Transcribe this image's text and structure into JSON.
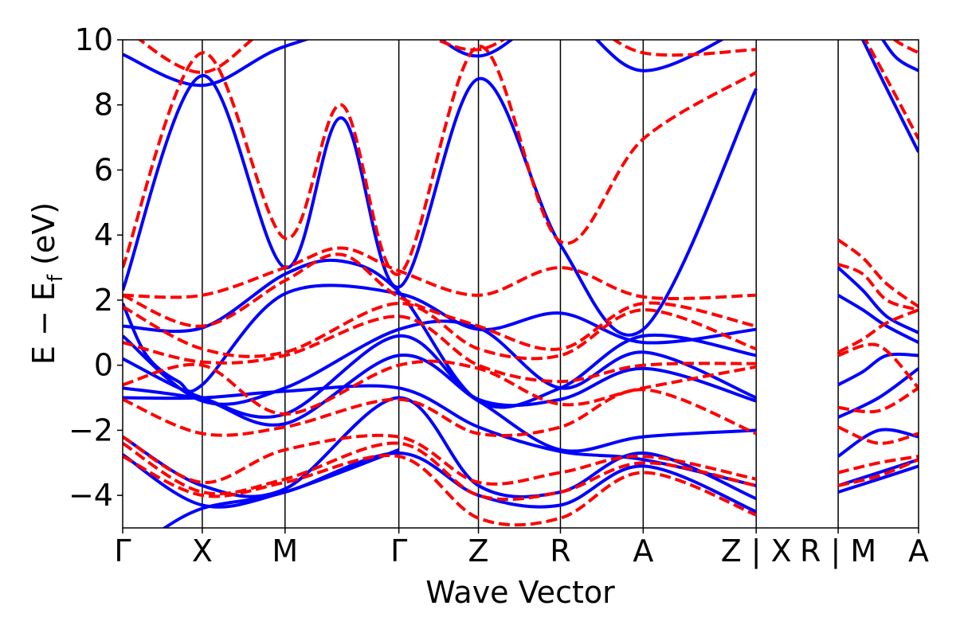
{
  "chart_data": {
    "type": "line",
    "title": "",
    "xlabel": "Wave Vector",
    "ylabel": "E − E_f (eV)",
    "ylabel_main": "E − E",
    "ylabel_sub": "f",
    "ylabel_unit": " (eV)",
    "ylim": [
      -5,
      10
    ],
    "xlim": [
      0,
      10
    ],
    "yticks": [
      -4,
      -2,
      0,
      2,
      4,
      6,
      8,
      10
    ],
    "ytick_labels": [
      "−4",
      "−2",
      "0",
      "2",
      "4",
      "6",
      "8",
      "10"
    ],
    "kpath_ticks": [
      {
        "x": 0.0,
        "label": "Γ"
      },
      {
        "x": 1.0,
        "label": "X"
      },
      {
        "x": 2.04,
        "label": "M"
      },
      {
        "x": 3.47,
        "label": "Γ"
      },
      {
        "x": 4.47,
        "label": "Z"
      },
      {
        "x": 5.5,
        "label": "R"
      },
      {
        "x": 6.54,
        "label": "A"
      },
      {
        "x": 7.96,
        "label": "Z | X"
      },
      {
        "x": 8.99,
        "label": "R | M"
      },
      {
        "x": 10.0,
        "label": "A"
      }
    ],
    "grid": false,
    "series": [
      {
        "color": "#0000ff",
        "style": "solid",
        "bands": [
          {
            "x": [
              0,
              1,
              2.04,
              3.47,
              4.47,
              5.5,
              6.54,
              7.96
            ],
            "y": [
              9.55,
              8.6,
              9.8,
              10.6,
              9.5,
              10.8,
              9.05,
              10.6
            ]
          },
          {
            "x": [
              0,
              1,
              2.04,
              2.75,
              3.47,
              4.47,
              5.5,
              6.54,
              7.96
            ],
            "y": [
              2.3,
              8.9,
              3.0,
              7.6,
              2.4,
              8.8,
              3.7,
              1.1,
              8.5
            ]
          },
          {
            "x": [
              0,
              0.3,
              0.7,
              1,
              2.04,
              3.47,
              4.47,
              5.5,
              6.54,
              7.96
            ],
            "y": [
              1.9,
              0.3,
              -0.5,
              -0.6,
              2.2,
              2.2,
              1.1,
              1.6,
              0.7,
              1.1
            ]
          },
          {
            "x": [
              0,
              1,
              2.04,
              2.75,
              3.47,
              4.47,
              5.5,
              6.54,
              7.96
            ],
            "y": [
              1.2,
              1.15,
              2.8,
              3.2,
              2.25,
              -1.1,
              -0.7,
              0.9,
              0.3
            ]
          },
          {
            "x": [
              0,
              1,
              2.04,
              3.47,
              4.47,
              5.5,
              6.54,
              7.96
            ],
            "y": [
              0.9,
              -1.1,
              -0.7,
              1.1,
              1.15,
              -0.7,
              0.4,
              -1.0
            ]
          },
          {
            "x": [
              0,
              1,
              2.04,
              3.47,
              4.47,
              5.5,
              6.54,
              7.96
            ],
            "y": [
              0.2,
              -1.0,
              -1.5,
              0.9,
              -1.05,
              -1.05,
              -0.1,
              -1.1
            ]
          },
          {
            "x": [
              0,
              1,
              2.04,
              3.47,
              4.47,
              5.5,
              6.54,
              7.96
            ],
            "y": [
              -0.7,
              -1.05,
              -1.8,
              0.3,
              -1.1,
              -2.6,
              -2.2,
              -2.0
            ]
          },
          {
            "x": [
              0,
              1,
              2.04,
              3.47,
              4.47,
              5.5,
              6.54,
              7.96
            ],
            "y": [
              -1.0,
              -1.0,
              -0.8,
              -0.7,
              -1.9,
              -2.65,
              -2.9,
              -3.7
            ]
          },
          {
            "x": [
              0,
              1,
              2.04,
              3.47,
              4.47,
              5.5,
              6.54,
              7.96
            ],
            "y": [
              -2.2,
              -3.7,
              -3.8,
              -1.0,
              -3.7,
              -3.9,
              -2.7,
              -4.1
            ]
          },
          {
            "x": [
              0,
              1,
              2.04,
              3.47,
              4.47,
              5.5,
              6.54,
              7.96
            ],
            "y": [
              -2.75,
              -4.3,
              -3.9,
              -2.7,
              -4.0,
              -4.3,
              -3.1,
              -4.5
            ]
          },
          {
            "x": [
              0.4,
              1,
              2.04,
              3.47
            ],
            "y": [
              -5.2,
              -4.4,
              -3.9,
              -2.6
            ]
          },
          {
            "x": [
              8.99,
              9.3,
              9.6,
              10
            ],
            "y": [
              3.0,
              2.3,
              1.5,
              1.0
            ]
          },
          {
            "x": [
              8.99,
              9.3,
              9.6,
              10
            ],
            "y": [
              2.15,
              1.7,
              1.2,
              0.7
            ]
          },
          {
            "x": [
              8.99,
              9.3,
              9.6,
              10
            ],
            "y": [
              -0.6,
              -0.2,
              0.3,
              0.3
            ]
          },
          {
            "x": [
              8.99,
              9.5,
              10
            ],
            "y": [
              -1.6,
              -1.0,
              -0.1
            ]
          },
          {
            "x": [
              8.99,
              9.5,
              10
            ],
            "y": [
              -2.8,
              -2.0,
              -2.2
            ]
          },
          {
            "x": [
              8.99,
              9.5,
              10
            ],
            "y": [
              -3.7,
              -3.3,
              -2.9
            ]
          },
          {
            "x": [
              8.99,
              9.5,
              10
            ],
            "y": [
              -3.9,
              -3.5,
              -3.1
            ]
          },
          {
            "x": [
              9.2,
              9.6,
              10
            ],
            "y": [
              10.5,
              8.5,
              6.55
            ]
          },
          {
            "x": [
              9.4,
              9.7,
              10
            ],
            "y": [
              10.6,
              9.5,
              9.05
            ]
          }
        ]
      },
      {
        "color": "#ff0000",
        "style": "dashed",
        "bands": [
          {
            "x": [
              0,
              1,
              2.04,
              3.47,
              4.47,
              5.5,
              6.54,
              7.96
            ],
            "y": [
              10.4,
              9.0,
              10.6,
              10.4,
              9.7,
              10.9,
              9.6,
              9.7
            ]
          },
          {
            "x": [
              0,
              1,
              2.04,
              2.75,
              3.47,
              4.47,
              5.5,
              6.54,
              7.96
            ],
            "y": [
              3.0,
              9.6,
              3.9,
              8.0,
              2.8,
              9.8,
              3.8,
              6.95,
              9.0
            ]
          },
          {
            "x": [
              0,
              1,
              2.04,
              2.75,
              3.47,
              4.47,
              5.5,
              6.54,
              7.96
            ],
            "y": [
              2.15,
              2.15,
              3.0,
              3.6,
              2.9,
              2.15,
              3.0,
              2.1,
              2.15
            ]
          },
          {
            "x": [
              0,
              1,
              2.04,
              2.75,
              3.47,
              4.47,
              5.5,
              6.54,
              7.96
            ],
            "y": [
              2.15,
              1.2,
              2.6,
              3.4,
              2.1,
              1.2,
              0.5,
              1.9,
              1.2
            ]
          },
          {
            "x": [
              0,
              1,
              2.04,
              3.47,
              4.47,
              5.5,
              6.54,
              7.96
            ],
            "y": [
              1.8,
              0.5,
              0.4,
              1.9,
              0.5,
              0.3,
              1.7,
              0.5
            ]
          },
          {
            "x": [
              0,
              1,
              2.04,
              3.47,
              4.47,
              5.5,
              6.54,
              7.96
            ],
            "y": [
              0.7,
              0.1,
              0.3,
              1.5,
              0.0,
              -0.5,
              0.0,
              0.05
            ]
          },
          {
            "x": [
              0,
              1,
              2.04,
              3.47,
              4.47,
              5.5,
              6.54,
              7.96
            ],
            "y": [
              -0.6,
              0.0,
              -1.5,
              0.0,
              -0.1,
              -1.2,
              -0.7,
              -0.05
            ]
          },
          {
            "x": [
              0,
              1,
              2.04,
              3.47,
              4.47,
              5.5,
              6.54,
              7.96
            ],
            "y": [
              -1.05,
              -2.1,
              -1.9,
              -1.05,
              -2.1,
              -1.9,
              -0.75,
              -2.1
            ]
          },
          {
            "x": [
              0,
              1,
              2.04,
              3.47,
              4.47,
              5.5,
              6.54,
              7.96
            ],
            "y": [
              -2.2,
              -3.6,
              -2.6,
              -2.2,
              -3.6,
              -3.3,
              -2.8,
              -3.5
            ]
          },
          {
            "x": [
              0,
              1,
              2.04,
              3.47,
              4.47,
              5.5,
              6.54,
              7.96
            ],
            "y": [
              -2.4,
              -3.9,
              -3.5,
              -2.4,
              -4.0,
              -3.9,
              -3.0,
              -3.7
            ]
          },
          {
            "x": [
              0,
              1,
              2.04,
              3.47,
              4.47,
              5.5,
              6.54,
              7.96
            ],
            "y": [
              -2.8,
              -4.0,
              -3.6,
              -2.8,
              -4.7,
              -4.7,
              -3.3,
              -4.6
            ]
          },
          {
            "x": [
              8.99,
              9.3,
              9.6,
              10
            ],
            "y": [
              3.85,
              3.3,
              2.5,
              1.8
            ]
          },
          {
            "x": [
              8.99,
              9.3,
              9.6,
              10
            ],
            "y": [
              3.1,
              2.8,
              2.0,
              1.7
            ]
          },
          {
            "x": [
              8.99,
              9.3,
              9.6,
              10
            ],
            "y": [
              0.4,
              0.8,
              1.3,
              1.7
            ]
          },
          {
            "x": [
              8.99,
              9.5,
              10
            ],
            "y": [
              0.3,
              0.6,
              -0.7
            ]
          },
          {
            "x": [
              8.99,
              9.5,
              10
            ],
            "y": [
              -1.3,
              -1.4,
              -0.7
            ]
          },
          {
            "x": [
              8.99,
              9.5,
              10
            ],
            "y": [
              -1.9,
              -2.4,
              -2.1
            ]
          },
          {
            "x": [
              8.99,
              9.5,
              10
            ],
            "y": [
              -3.3,
              -3.0,
              -2.8
            ]
          },
          {
            "x": [
              8.99,
              9.5,
              10
            ],
            "y": [
              -3.7,
              -3.4,
              -2.9
            ]
          },
          {
            "x": [
              9.2,
              9.6,
              10
            ],
            "y": [
              10.6,
              8.8,
              6.95
            ]
          },
          {
            "x": [
              9.4,
              9.7,
              10
            ],
            "y": [
              10.7,
              10.0,
              9.6
            ]
          }
        ]
      }
    ]
  }
}
